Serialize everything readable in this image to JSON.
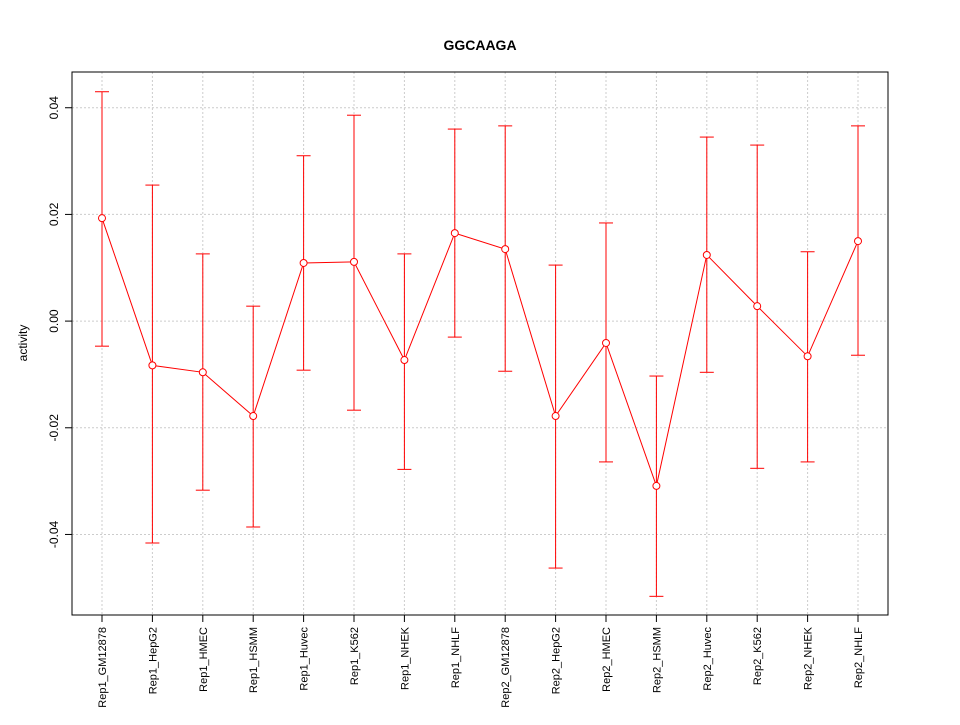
{
  "chart_data": {
    "type": "line",
    "title": "GGCAAGA",
    "xlabel": "",
    "ylabel": "activity",
    "ylim": [
      -0.0551,
      0.0467
    ],
    "yticks": [
      -0.04,
      -0.02,
      0.0,
      0.02,
      0.04
    ],
    "ytick_labels": [
      "-0.04",
      "-0.02",
      "0.00",
      "0.02",
      "0.04"
    ],
    "grid": true,
    "color": "#ff0000",
    "categories": [
      "Rep1_GM12878",
      "Rep1_HepG2",
      "Rep1_HMEC",
      "Rep1_HSMM",
      "Rep1_Huvec",
      "Rep1_K562",
      "Rep1_NHEK",
      "Rep1_NHLF",
      "Rep2_GM12878",
      "Rep2_HepG2",
      "Rep2_HMEC",
      "Rep2_HSMM",
      "Rep2_Huvec",
      "Rep2_K562",
      "Rep2_NHEK",
      "Rep2_NHLF"
    ],
    "values": [
      0.0193,
      -0.0083,
      -0.0096,
      -0.0178,
      0.0109,
      0.0111,
      -0.0073,
      0.0165,
      0.0135,
      -0.0178,
      -0.0041,
      -0.0309,
      0.0124,
      0.0028,
      -0.0066,
      0.015
    ],
    "upper": [
      0.043,
      0.0255,
      0.0126,
      0.0028,
      0.031,
      0.0386,
      0.0126,
      0.036,
      0.0366,
      0.0105,
      0.0184,
      -0.0103,
      0.0345,
      0.033,
      0.013,
      0.0366
    ],
    "lower": [
      -0.0047,
      -0.0416,
      -0.0317,
      -0.0386,
      -0.0092,
      -0.0167,
      -0.0278,
      -0.003,
      -0.0094,
      -0.0463,
      -0.0264,
      -0.0516,
      -0.0096,
      -0.0276,
      -0.0264,
      -0.0064
    ]
  }
}
